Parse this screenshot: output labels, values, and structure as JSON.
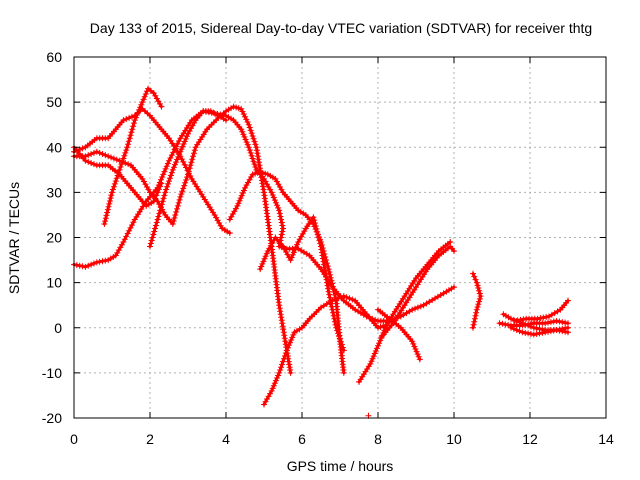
{
  "chart_data": {
    "type": "scatter",
    "title": "Day 133 of 2015, Sidereal Day-to-day VTEC variation (SDTVAR) for receiver thtg",
    "xlabel": "GPS time / hours",
    "ylabel": "SDTVAR / TECUs",
    "xlim": [
      0,
      14
    ],
    "ylim": [
      -20,
      60
    ],
    "xticks": [
      "0",
      "2",
      "4",
      "6",
      "8",
      "10",
      "12",
      "14"
    ],
    "yticks": [
      "-20",
      "-10",
      "0",
      "10",
      "20",
      "30",
      "40",
      "50",
      "60"
    ],
    "grid": true,
    "marker": "+",
    "color": "#ff0000",
    "series": [
      {
        "name": "s1",
        "points": [
          [
            0,
            39
          ],
          [
            0.3,
            40
          ],
          [
            0.6,
            42
          ],
          [
            0.9,
            42
          ],
          [
            1.1,
            44
          ],
          [
            1.3,
            46
          ],
          [
            1.6,
            47
          ],
          [
            1.8,
            48.5
          ],
          [
            2.0,
            47
          ],
          [
            2.2,
            45
          ],
          [
            2.5,
            42
          ],
          [
            2.8,
            38
          ],
          [
            3.1,
            33
          ],
          [
            3.4,
            29
          ],
          [
            3.7,
            25
          ],
          [
            3.9,
            22
          ],
          [
            4.1,
            21
          ]
        ]
      },
      {
        "name": "s2",
        "points": [
          [
            0,
            14
          ],
          [
            0.3,
            13.5
          ],
          [
            0.6,
            14.5
          ],
          [
            0.9,
            15
          ],
          [
            1.1,
            16
          ],
          [
            1.3,
            19
          ],
          [
            1.6,
            24
          ],
          [
            1.9,
            28
          ],
          [
            2.2,
            31
          ],
          [
            2.5,
            37
          ],
          [
            2.8,
            42
          ],
          [
            3.1,
            46
          ],
          [
            3.4,
            48
          ],
          [
            3.7,
            47.5
          ],
          [
            4.0,
            47
          ],
          [
            4.2,
            46
          ],
          [
            4.4,
            44
          ],
          [
            4.6,
            40
          ],
          [
            4.8,
            35
          ],
          [
            5.0,
            33
          ],
          [
            5.2,
            30
          ],
          [
            5.4,
            26
          ],
          [
            5.5,
            22
          ],
          [
            5.4,
            18
          ],
          [
            5.6,
            17.5
          ],
          [
            5.9,
            17.5
          ],
          [
            6.2,
            16
          ],
          [
            6.5,
            13
          ],
          [
            6.8,
            9
          ],
          [
            7.1,
            6
          ],
          [
            7.4,
            4
          ],
          [
            7.7,
            2.5
          ],
          [
            8.0,
            1.5
          ],
          [
            8.3,
            1.5
          ],
          [
            8.6,
            2.5
          ],
          [
            8.9,
            4
          ],
          [
            9.2,
            5
          ],
          [
            9.5,
            6.5
          ],
          [
            9.8,
            8
          ],
          [
            10.0,
            9
          ]
        ]
      },
      {
        "name": "s3",
        "points": [
          [
            0,
            38
          ],
          [
            0.3,
            38
          ],
          [
            0.6,
            39
          ],
          [
            0.9,
            38
          ],
          [
            1.2,
            37
          ],
          [
            1.5,
            36
          ],
          [
            1.8,
            33
          ],
          [
            2.0,
            30
          ],
          [
            2.2,
            28
          ],
          [
            2.4,
            25
          ],
          [
            2.6,
            23
          ],
          [
            2.8,
            29
          ],
          [
            3.0,
            34
          ],
          [
            3.2,
            40
          ],
          [
            3.5,
            44
          ],
          [
            3.8,
            46.5
          ],
          [
            4.0,
            48
          ],
          [
            4.2,
            49
          ],
          [
            4.4,
            48.5
          ],
          [
            4.6,
            45
          ],
          [
            4.8,
            40
          ],
          [
            5.0,
            30
          ],
          [
            5.2,
            18
          ],
          [
            5.4,
            5
          ],
          [
            5.6,
            -5
          ],
          [
            5.7,
            -10
          ]
        ]
      },
      {
        "name": "s4",
        "points": [
          [
            0,
            40
          ],
          [
            0.3,
            37
          ],
          [
            0.6,
            36
          ],
          [
            0.9,
            36
          ],
          [
            1.2,
            34
          ],
          [
            1.5,
            31
          ],
          [
            1.7,
            29
          ],
          [
            1.9,
            27
          ],
          [
            2.1,
            28
          ],
          [
            2.2,
            30
          ],
          [
            2.3,
            32
          ]
        ]
      },
      {
        "name": "s5",
        "points": [
          [
            0.8,
            23
          ],
          [
            1.0,
            30
          ],
          [
            1.2,
            35
          ],
          [
            1.4,
            40
          ],
          [
            1.6,
            46
          ],
          [
            1.8,
            50
          ],
          [
            1.95,
            53
          ],
          [
            2.1,
            52
          ],
          [
            2.3,
            49
          ]
        ]
      },
      {
        "name": "s6",
        "points": [
          [
            2.0,
            18
          ],
          [
            2.2,
            24
          ],
          [
            2.4,
            30
          ],
          [
            2.6,
            35
          ],
          [
            2.8,
            39
          ],
          [
            3.0,
            43
          ],
          [
            3.2,
            46
          ],
          [
            3.4,
            48
          ],
          [
            3.6,
            48
          ],
          [
            3.8,
            47
          ],
          [
            4.0,
            46
          ]
        ]
      },
      {
        "name": "s7",
        "points": [
          [
            4.1,
            24
          ],
          [
            4.3,
            27
          ],
          [
            4.5,
            31
          ],
          [
            4.7,
            34
          ],
          [
            4.9,
            34.5
          ],
          [
            5.1,
            34
          ],
          [
            5.3,
            33
          ],
          [
            5.5,
            30
          ],
          [
            5.7,
            28
          ],
          [
            5.9,
            26
          ],
          [
            6.1,
            25
          ],
          [
            6.3,
            23
          ],
          [
            6.5,
            19
          ],
          [
            6.7,
            13
          ],
          [
            6.9,
            6
          ],
          [
            7.0,
            -3
          ],
          [
            7.1,
            -10
          ]
        ]
      },
      {
        "name": "s8",
        "points": [
          [
            4.9,
            13
          ],
          [
            5.1,
            17
          ],
          [
            5.3,
            20
          ],
          [
            5.5,
            18
          ],
          [
            5.7,
            15
          ],
          [
            5.9,
            19
          ],
          [
            6.1,
            22
          ],
          [
            6.3,
            24.5
          ],
          [
            6.5,
            18
          ],
          [
            6.7,
            8
          ],
          [
            6.9,
            0
          ],
          [
            7.1,
            -5
          ]
        ]
      },
      {
        "name": "s9",
        "points": [
          [
            5.0,
            -17
          ],
          [
            5.2,
            -14
          ],
          [
            5.4,
            -10
          ],
          [
            5.6,
            -5
          ],
          [
            5.8,
            -1
          ],
          [
            6.0,
            0
          ],
          [
            6.2,
            2
          ],
          [
            6.5,
            4.5
          ],
          [
            6.8,
            6
          ],
          [
            7.1,
            7
          ],
          [
            7.4,
            6
          ],
          [
            7.7,
            3
          ],
          [
            8.0,
            0
          ],
          [
            8.2,
            0.5
          ]
        ]
      },
      {
        "name": "s10",
        "points": [
          [
            7.5,
            -12
          ],
          [
            7.8,
            -8
          ],
          [
            8.0,
            -4
          ],
          [
            8.2,
            0
          ],
          [
            8.4,
            3
          ],
          [
            8.7,
            7
          ],
          [
            9.0,
            11
          ],
          [
            9.3,
            14
          ],
          [
            9.6,
            17
          ],
          [
            9.9,
            19
          ]
        ]
      },
      {
        "name": "s11",
        "points": [
          [
            8.0,
            4
          ],
          [
            8.3,
            2
          ],
          [
            8.6,
            0
          ],
          [
            8.9,
            -3
          ],
          [
            9.1,
            -7
          ]
        ]
      },
      {
        "name": "s12",
        "points": [
          [
            8.1,
            -2
          ],
          [
            8.4,
            1
          ],
          [
            8.7,
            5
          ],
          [
            9.0,
            9
          ],
          [
            9.3,
            13
          ],
          [
            9.6,
            16
          ],
          [
            9.9,
            18
          ],
          [
            10.0,
            17
          ]
        ]
      },
      {
        "name": "s13",
        "points": [
          [
            10.5,
            12
          ],
          [
            10.6,
            10
          ],
          [
            10.7,
            7
          ],
          [
            10.6,
            4
          ],
          [
            10.5,
            0
          ]
        ]
      },
      {
        "name": "s14",
        "points": [
          [
            11.3,
            3
          ],
          [
            11.5,
            2
          ],
          [
            11.8,
            1
          ],
          [
            12.1,
            0
          ],
          [
            12.4,
            -0.5
          ],
          [
            12.7,
            -0.5
          ],
          [
            13.0,
            -1
          ]
        ]
      },
      {
        "name": "s15",
        "points": [
          [
            11.5,
            0
          ],
          [
            11.8,
            -1
          ],
          [
            12.1,
            -1.5
          ],
          [
            12.4,
            -1
          ],
          [
            12.7,
            -0.5
          ],
          [
            13.0,
            0
          ]
        ]
      },
      {
        "name": "s16",
        "points": [
          [
            11.6,
            1.5
          ],
          [
            11.9,
            2
          ],
          [
            12.2,
            2
          ],
          [
            12.5,
            2.5
          ],
          [
            12.8,
            4
          ],
          [
            13.0,
            6
          ]
        ]
      },
      {
        "name": "s17",
        "points": [
          [
            11.2,
            1
          ],
          [
            11.5,
            0.5
          ],
          [
            11.8,
            0.5
          ],
          [
            12.1,
            1
          ],
          [
            12.4,
            1
          ],
          [
            12.7,
            1.5
          ],
          [
            13.0,
            1
          ]
        ]
      }
    ],
    "isolated_points": [
      [
        7.75,
        -19.5
      ]
    ]
  }
}
